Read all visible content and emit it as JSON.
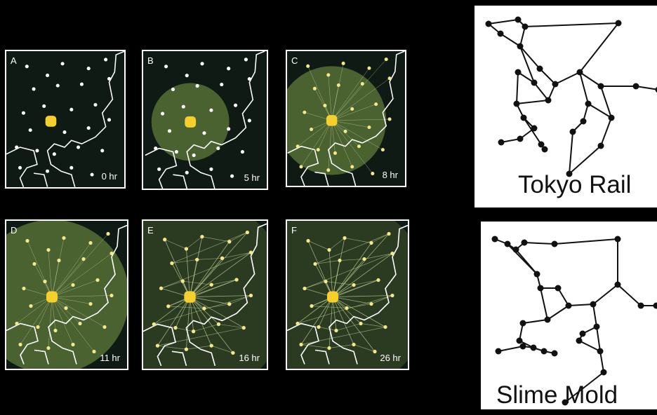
{
  "panels": [
    {
      "letter": "A",
      "time": "0 hr",
      "spread": 0.05
    },
    {
      "letter": "B",
      "time": "5 hr",
      "spread": 0.3
    },
    {
      "letter": "C",
      "time": "8 hr",
      "spread": 0.5
    },
    {
      "letter": "D",
      "time": "11 hr",
      "spread": 0.75
    },
    {
      "letter": "E",
      "time": "16 hr",
      "spread": 1.0
    },
    {
      "letter": "F",
      "time": "26 hr",
      "spread": 1.0
    }
  ],
  "networks": {
    "rail_label": "Tokyo Rail",
    "mold_label": "Slime Mold"
  },
  "colors": {
    "background": "#000000",
    "panel_background": "#0f1a14",
    "slime": "#5f7a3a",
    "food": "#f5d02c",
    "coast": "#ffffff"
  }
}
